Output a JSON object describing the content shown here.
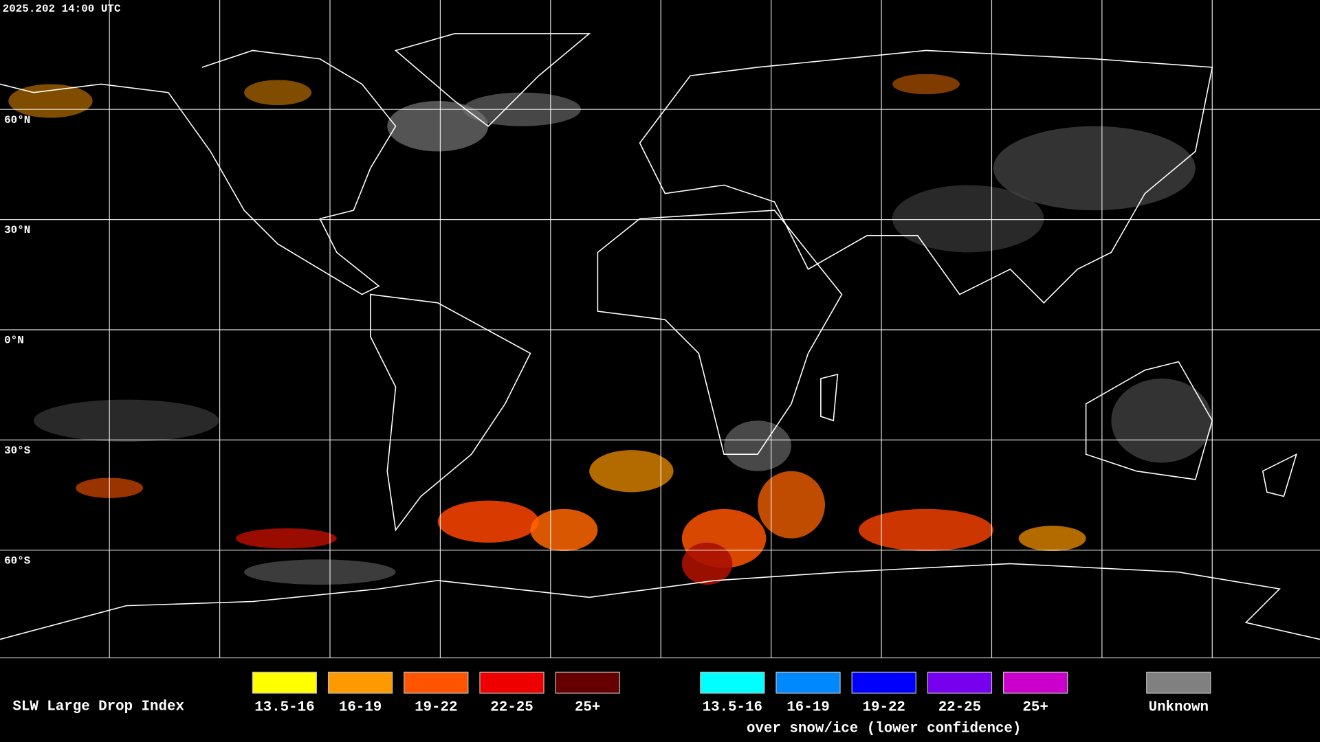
{
  "header": {
    "timestamp": "2025.202 14:00 UTC"
  },
  "map": {
    "lat_labels": [
      "60°N",
      "30°N",
      "0°N",
      "30°S",
      "60°S"
    ]
  },
  "legend": {
    "title": "SLW Large Drop Index",
    "groups": [
      {
        "items": [
          {
            "label": "13.5-16",
            "color": "#ffff00"
          },
          {
            "label": "16-19",
            "color": "#ff9900"
          },
          {
            "label": "19-22",
            "color": "#ff5500"
          },
          {
            "label": "22-25",
            "color": "#ee0000"
          },
          {
            "label": "25+",
            "color": "#660000"
          }
        ]
      },
      {
        "items": [
          {
            "label": "13.5-16",
            "color": "#00ffff"
          },
          {
            "label": "16-19",
            "color": "#0088ff"
          },
          {
            "label": "19-22",
            "color": "#0000ff"
          },
          {
            "label": "22-25",
            "color": "#7700ee"
          },
          {
            "label": "25+",
            "color": "#cc00cc"
          }
        ],
        "caption": "over snow/ice (lower confidence)"
      },
      {
        "items": [
          {
            "label": "Unknown",
            "color": "#808080"
          }
        ]
      }
    ]
  }
}
